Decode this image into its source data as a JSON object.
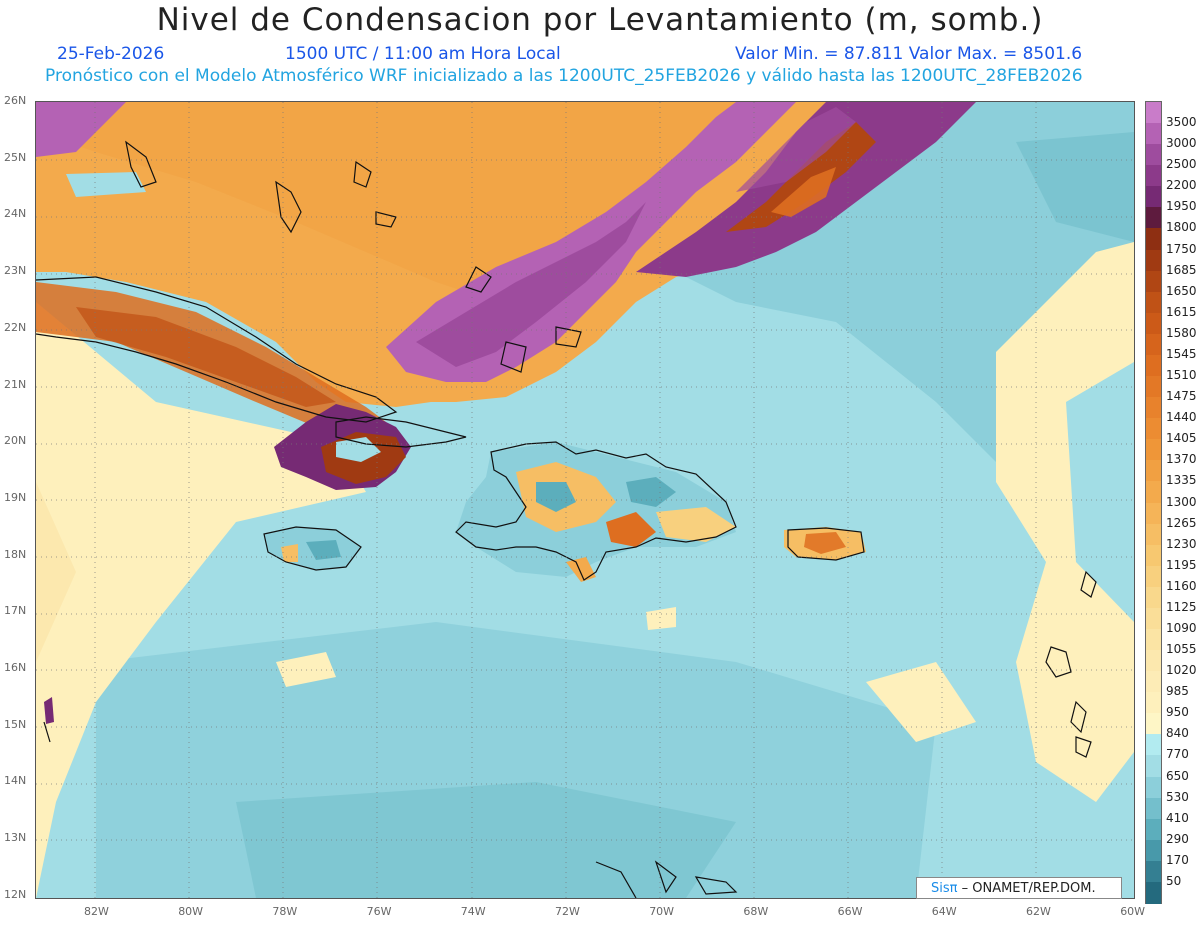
{
  "title": "Nivel de Condensacion por Levantamiento (m, somb.)",
  "date": "25-Feb-2026",
  "time": "1500 UTC / 11:00 am Hora Local",
  "minmax": "Valor Min. = 87.811  Valor Max. = 8501.6",
  "model_line": "Pronóstico con el Modelo Atmosférico WRF inicializado a las 1200UTC_25FEB2026 y válido hasta las  1200UTC_28FEB2026",
  "credit_logo": "Sisπ",
  "credit_text": "– ONAMET/REP.DOM.",
  "lat_labels": [
    "26N",
    "25N",
    "24N",
    "23N",
    "22N",
    "21N",
    "20N",
    "19N",
    "18N",
    "17N",
    "16N",
    "15N",
    "14N",
    "13N",
    "12N"
  ],
  "lon_labels": [
    "82W",
    "80W",
    "78W",
    "76W",
    "74W",
    "72W",
    "70W",
    "68W",
    "66W",
    "64W",
    "62W",
    "60W"
  ],
  "legend": [
    {
      "label": "3500",
      "color": "#c97cc9"
    },
    {
      "label": "3000",
      "color": "#b462b4"
    },
    {
      "label": "2500",
      "color": "#9e4c9e"
    },
    {
      "label": "2200",
      "color": "#8c3a8a"
    },
    {
      "label": "1950",
      "color": "#762a74"
    },
    {
      "label": "1800",
      "color": "#5e1b3e"
    },
    {
      "label": "1750",
      "color": "#8e2f12"
    },
    {
      "label": "1685",
      "color": "#a03a12"
    },
    {
      "label": "1650",
      "color": "#b04614"
    },
    {
      "label": "1615",
      "color": "#c05216"
    },
    {
      "label": "1580",
      "color": "#cc5a18"
    },
    {
      "label": "1545",
      "color": "#d6641c"
    },
    {
      "label": "1510",
      "color": "#de6e20"
    },
    {
      "label": "1475",
      "color": "#e37826"
    },
    {
      "label": "1440",
      "color": "#e8822c"
    },
    {
      "label": "1405",
      "color": "#ec8c32"
    },
    {
      "label": "1370",
      "color": "#ef9638"
    },
    {
      "label": "1335",
      "color": "#f1a042"
    },
    {
      "label": "1300",
      "color": "#f3aa4c"
    },
    {
      "label": "1265",
      "color": "#f5b458"
    },
    {
      "label": "1230",
      "color": "#f6be64"
    },
    {
      "label": "1195",
      "color": "#f7c870"
    },
    {
      "label": "1160",
      "color": "#f8d07e"
    },
    {
      "label": "1125",
      "color": "#f9d88c"
    },
    {
      "label": "1090",
      "color": "#fade98"
    },
    {
      "label": "1055",
      "color": "#fbe4a4"
    },
    {
      "label": "1020",
      "color": "#fce8ae"
    },
    {
      "label": "985",
      "color": "#fdecb6"
    },
    {
      "label": "950",
      "color": "#fef0bc"
    },
    {
      "label": "840",
      "color": "#fef6c6"
    },
    {
      "label": "770",
      "color": "#b2ebf0"
    },
    {
      "label": "650",
      "color": "#a2dde5"
    },
    {
      "label": "530",
      "color": "#8ccfda"
    },
    {
      "label": "410",
      "color": "#74bfcc"
    },
    {
      "label": "290",
      "color": "#5caebc"
    },
    {
      "label": "170",
      "color": "#4899aa"
    },
    {
      "label": "50",
      "color": "#347f92"
    },
    {
      "label": "",
      "color": "#246a7e"
    }
  ]
}
